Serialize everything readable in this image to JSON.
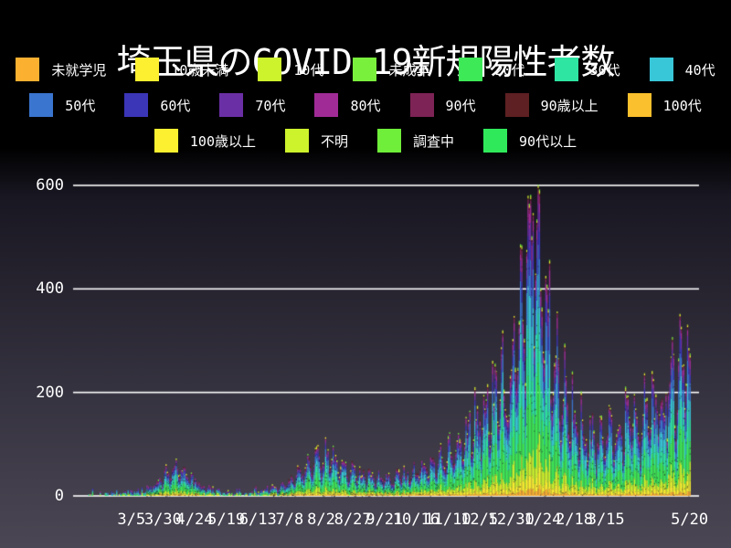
{
  "chart_data": {
    "type": "bar",
    "stacked": true,
    "title": "埼玉県のCOVID-19新規陽性者数",
    "xlabel": "",
    "ylabel": "",
    "ylim": [
      0,
      620
    ],
    "y_ticks": [
      0,
      200,
      400,
      600
    ],
    "grid": "horizontal-white-lines",
    "legend_position": "top",
    "x_ticks": [
      {
        "label": "3/5",
        "day": 46
      },
      {
        "label": "3/30",
        "day": 71
      },
      {
        "label": "4/24",
        "day": 96
      },
      {
        "label": "5/19",
        "day": 121
      },
      {
        "label": "6/13",
        "day": 146
      },
      {
        "label": "7/8",
        "day": 171
      },
      {
        "label": "8/2",
        "day": 196
      },
      {
        "label": "8/27",
        "day": 221
      },
      {
        "label": "9/21",
        "day": 246
      },
      {
        "label": "10/16",
        "day": 271
      },
      {
        "label": "11/10",
        "day": 296
      },
      {
        "label": "12/5",
        "day": 321
      },
      {
        "label": "12/30",
        "day": 346
      },
      {
        "label": "1/24",
        "day": 371
      },
      {
        "label": "2/18",
        "day": 396
      },
      {
        "label": "3/15",
        "day": 421
      },
      {
        "label": "5/20",
        "day": 487
      }
    ],
    "series": [
      {
        "name": "未就学児",
        "color": "#FBB030",
        "share": 0.022
      },
      {
        "name": "10歳未満",
        "color": "#FDF030",
        "share": 0.05
      },
      {
        "name": "10代",
        "color": "#CDF32C",
        "share": 0.085
      },
      {
        "name": "未成年",
        "color": "#79F03C",
        "share": 0.004
      },
      {
        "name": "20代",
        "color": "#3DE956",
        "share": 0.21
      },
      {
        "name": "30代",
        "color": "#2EE5A2",
        "share": 0.155
      },
      {
        "name": "40代",
        "color": "#38C6D9",
        "share": 0.15
      },
      {
        "name": "50代",
        "color": "#3A75CF",
        "share": 0.125
      },
      {
        "name": "60代",
        "color": "#3B35B8",
        "share": 0.07
      },
      {
        "name": "70代",
        "color": "#6B2FA5",
        "share": 0.055
      },
      {
        "name": "80代",
        "color": "#A02B96",
        "share": 0.042
      },
      {
        "name": "90代",
        "color": "#7D2355",
        "share": 0.02
      },
      {
        "name": "90歳以上",
        "color": "#5E2022",
        "share": 0.006
      },
      {
        "name": "100代",
        "color": "#FBC02D",
        "share": 0.0
      },
      {
        "name": "100歳以上",
        "color": "#FDF030",
        "share": 0.003
      },
      {
        "name": "不明",
        "color": "#CDF32C",
        "share": 0.005
      },
      {
        "name": "調査中",
        "color": "#6FEE3A",
        "share": 0.002
      },
      {
        "name": "90代以上",
        "color": "#2FE95B",
        "share": 0.0
      }
    ],
    "days_total": 488,
    "weekly_totals": [
      0,
      0,
      1,
      1,
      2,
      2,
      3,
      5,
      8,
      15,
      30,
      48,
      52,
      38,
      22,
      10,
      5,
      3,
      2,
      3,
      4,
      5,
      8,
      14,
      22,
      35,
      48,
      60,
      75,
      70,
      58,
      48,
      42,
      38,
      33,
      36,
      32,
      36,
      42,
      46,
      52,
      58,
      72,
      92,
      112,
      132,
      152,
      172,
      195,
      225,
      335,
      480,
      580,
      430,
      310,
      225,
      165,
      135,
      122,
      112,
      112,
      122,
      132,
      142,
      152,
      165,
      185,
      205,
      230,
      265
    ],
    "week_pattern": [
      0.55,
      0.8,
      1.18,
      1.2,
      1.12,
      1.05,
      0.78
    ],
    "peak_value": 605
  }
}
